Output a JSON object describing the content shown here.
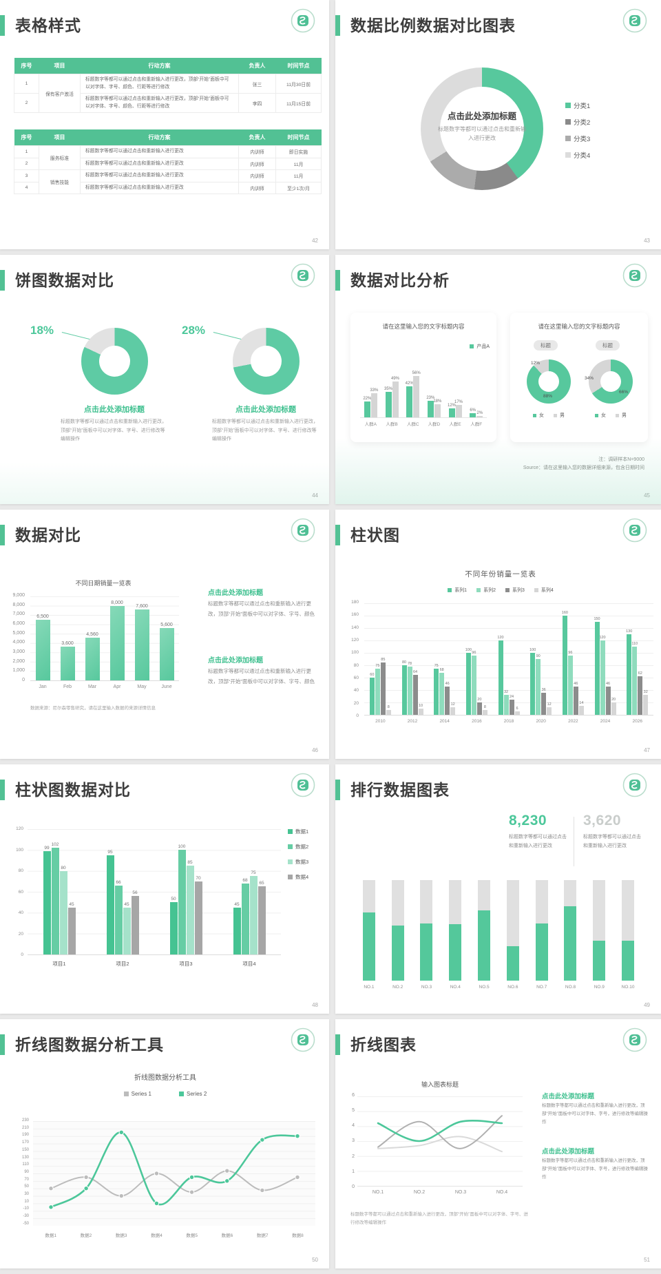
{
  "accent_green": "#52c194",
  "chart_green": "#57c89d",
  "slides": {
    "s42": {
      "title": "表格样式",
      "page": "42",
      "table1": {
        "headers": [
          "序号",
          "项目",
          "行动方案",
          "负责人",
          "时间节点"
        ],
        "rows": [
          {
            "no": "1",
            "project": "保有客户激活",
            "span": 2,
            "plan": "标题数字等都可以通过点击和重新输入进行更改，顶部“开始”面板中可以对字体、字号、颜色、行距等进行修改",
            "owner": "张三",
            "time": "11月30日前"
          },
          {
            "no": "2",
            "plan": "标题数字等都可以通过点击和重新输入进行更改，顶部“开始”面板中可以对字体、字号、颜色、行距等进行修改",
            "owner": "李四",
            "time": "11月15日前"
          }
        ]
      },
      "table2": {
        "headers": [
          "序号",
          "项目",
          "行动方案",
          "负责人",
          "时间节点"
        ],
        "rows": [
          {
            "no": "1",
            "project": "服务标准",
            "span": 2,
            "plan": "标题数字等都可以通过点击和重新输入进行更改",
            "owner": "内训师",
            "time": "即日实施"
          },
          {
            "no": "2",
            "plan": "标题数字等都可以通过点击和重新输入进行更改",
            "owner": "内训师",
            "time": "11月"
          },
          {
            "no": "3",
            "project": "销售技能",
            "span": 2,
            "plan": "标题数字等都可以通过点击和重新输入进行更改",
            "owner": "内训师",
            "time": "11月"
          },
          {
            "no": "4",
            "plan": "标题数字等都可以通过点击和重新输入进行更改",
            "owner": "内训师",
            "time": "至少1次/月"
          }
        ]
      }
    },
    "s43": {
      "title": "数据比例数据对比图表",
      "page": "43",
      "donut_title": "点击此处添加标题",
      "donut_desc": "标题数字等都可以通过点击和重新输入进行更改"
    },
    "s44": {
      "title": "饼图数据对比",
      "page": "44",
      "caption": "点击此处添加标题",
      "desc": "标题数字等都可以通过点击和重新输入进行更改，顶部“开始”面板中可以对字体、字号、进行修改等编辑操作"
    },
    "s45": {
      "title": "数据对比分析",
      "page": "45",
      "card1_title": "请在这里输入您的文字标题内容",
      "card2_title": "请在这里输入您的文字标题内容",
      "badge": "标题",
      "note1": "注：调研样本N=9000",
      "note2": "Source：请在这里输入您的数据详细来源，包含日期时间"
    },
    "s46": {
      "title": "数据对比",
      "page": "46",
      "block_heading": "点击此处添加标题",
      "block_body": "标题数字等都可以通过点击和重新输入进行更改，顶部“开始”面板中可以对字体、字号、颜色"
    },
    "s47": {
      "title": "柱状图",
      "page": "47"
    },
    "s48": {
      "title": "柱状图数据对比",
      "page": "48"
    },
    "s49": {
      "title": "排行数据图表",
      "page": "49",
      "stat1": {
        "value": "8,230",
        "desc": "标题数字等都可以通过点击和重新输入进行更改"
      },
      "stat2": {
        "value": "3,620",
        "desc": "标题数字等都可以通过点击和重新输入进行更改"
      }
    },
    "s50": {
      "title": "折线图数据分析工具",
      "page": "50"
    },
    "s51": {
      "title": "折线图表",
      "page": "51",
      "block_heading": "点击此处添加标题",
      "block_body": "标题数字等都可以通过点击和重新输入进行更改，顶部“开始”面板中可以对字体、字号，进行修改等编辑操作",
      "footer": "标题数字等都可以通过点击和重新输入进行更改，顶部“开始”面板中可以对字体、字号、进行修改等编辑操作"
    }
  },
  "chart_data": [
    {
      "id": "donut-43",
      "type": "pie",
      "title": "点击此处添加标题",
      "subtitle": "标题数字等都可以通过点击和重新输入进行更改",
      "legend_position": "right",
      "slices": [
        {
          "label": "分类1",
          "value": 40,
          "color": "#57c89d"
        },
        {
          "label": "分类2",
          "value": 12,
          "color": "#8a8a8a"
        },
        {
          "label": "分类3",
          "value": 14,
          "color": "#ababab"
        },
        {
          "label": "分类4",
          "value": 34,
          "color": "#dcdcdc"
        }
      ]
    },
    {
      "id": "donut-44a",
      "type": "pie",
      "highlight_label": "18%",
      "slices": [
        {
          "value": 82,
          "color": "#5ecba4"
        },
        {
          "value": 18,
          "color": "#e2e2e2"
        }
      ]
    },
    {
      "id": "donut-44b",
      "type": "pie",
      "highlight_label": "28%",
      "slices": [
        {
          "value": 72,
          "color": "#5ecba4"
        },
        {
          "value": 28,
          "color": "#e2e2e2"
        }
      ]
    },
    {
      "id": "bar-45",
      "type": "bar",
      "title": "请在这里输入您的文字标题内容",
      "unit": "%",
      "ylim": [
        0,
        60
      ],
      "categories": [
        "人群A",
        "人群B",
        "人群C",
        "人群D",
        "人群E",
        "人群F"
      ],
      "series": [
        {
          "name": "产品A",
          "color": "#57c89d",
          "values": [
            22,
            35,
            42,
            23,
            12,
            6
          ]
        },
        {
          "name": "",
          "color": "#d5d5d5",
          "values": [
            33,
            49,
            56,
            18,
            17,
            2
          ]
        }
      ]
    },
    {
      "id": "donut-45a",
      "type": "pie",
      "badge": "标题",
      "slice_labels": [
        "12%",
        "88%"
      ],
      "slices": [
        {
          "label": "女",
          "value": 88,
          "color": "#57c89d"
        },
        {
          "label": "男",
          "value": 12,
          "color": "#d6d6d6"
        }
      ]
    },
    {
      "id": "donut-45b",
      "type": "pie",
      "badge": "标题",
      "slice_labels": [
        "34%",
        "66%"
      ],
      "slices": [
        {
          "label": "女",
          "value": 66,
          "color": "#57c89d"
        },
        {
          "label": "男",
          "value": 34,
          "color": "#d6d6d6"
        }
      ]
    },
    {
      "id": "bar-46",
      "type": "bar",
      "title": "不同日期销量一览表",
      "ylim": [
        0,
        9000
      ],
      "ytick_step": 1000,
      "categories": [
        "Jan",
        "Feb",
        "Mar",
        "Apr",
        "May",
        "June"
      ],
      "values": [
        6500,
        3600,
        4560,
        8000,
        7600,
        5600
      ],
      "labels": [
        "6,500",
        "3,600",
        "4,560",
        "8,000",
        "7,600",
        "5,600"
      ],
      "color": "#57c89d",
      "source": "数据来源：尼尔森零售研究，请在这里输入数据的来源详情信息"
    },
    {
      "id": "bar-47",
      "type": "bar",
      "title": "不同年份销量一览表",
      "ylim": [
        0,
        180
      ],
      "ytick_step": 20,
      "categories": [
        "2010",
        "2012",
        "2014",
        "2016",
        "2018",
        "2020",
        "2022",
        "2024",
        "2026"
      ],
      "series": [
        {
          "name": "系列1",
          "color": "#57c89d",
          "values": [
            60,
            80,
            75,
            100,
            120,
            100,
            160,
            150,
            130
          ]
        },
        {
          "name": "系列2",
          "color": "#8fdcbd",
          "values": [
            75,
            78,
            68,
            96,
            32,
            90,
            96,
            120,
            110
          ]
        },
        {
          "name": "系列3",
          "color": "#8c8c8c",
          "values": [
            85,
            64,
            46,
            20,
            24,
            36,
            46,
            46,
            62
          ]
        },
        {
          "name": "系列4",
          "color": "#d6d6d6",
          "values": [
            8,
            10,
            12,
            8,
            6,
            12,
            14,
            20,
            32
          ]
        }
      ]
    },
    {
      "id": "bar-48",
      "type": "bar",
      "ylim": [
        0,
        120
      ],
      "ytick_step": 20,
      "categories": [
        "项目1",
        "项目2",
        "项目3",
        "项目4"
      ],
      "series": [
        {
          "name": "数据1",
          "color": "#45c392",
          "values": [
            99,
            95,
            50,
            45
          ]
        },
        {
          "name": "数据2",
          "color": "#66cda4",
          "values": [
            102,
            66,
            100,
            68
          ]
        },
        {
          "name": "数据3",
          "color": "#a5e2ca",
          "values": [
            80,
            45,
            85,
            75
          ]
        },
        {
          "name": "数据4",
          "color": "#a6a6a6",
          "values": [
            45,
            56,
            70,
            65
          ]
        }
      ]
    },
    {
      "id": "rank-49",
      "type": "bar",
      "subtype": "stacked-percent",
      "categories": [
        "NO.1",
        "NO.2",
        "NO.3",
        "NO.4",
        "NO.5",
        "NO.6",
        "NO.7",
        "NO.8",
        "NO.9",
        "NO.10"
      ],
      "green_percent": [
        68,
        55,
        57,
        56,
        70,
        34,
        57,
        74,
        40,
        40
      ],
      "colors": {
        "filled": "#54c89b",
        "rest": "#e0e0e0"
      }
    },
    {
      "id": "line-50",
      "type": "line",
      "title": "折线图数据分析工具",
      "ylim": [
        -50,
        230
      ],
      "ytick_step": 20,
      "legend_position": "top",
      "categories": [
        "数据1",
        "数据2",
        "数据3",
        "数据4",
        "数据5",
        "数据6",
        "数据7",
        "数据8"
      ],
      "series": [
        {
          "name": "Series 1",
          "color": "#bcbcbc",
          "values": [
            50,
            80,
            30,
            90,
            40,
            97,
            45,
            80
          ]
        },
        {
          "name": "Series 2",
          "color": "#4cc79a",
          "values": [
            0,
            50,
            200,
            10,
            80,
            70,
            180,
            190
          ]
        }
      ]
    },
    {
      "id": "line-51",
      "type": "line",
      "title": "输入图表标题",
      "ylim": [
        0,
        6
      ],
      "ytick_step": 1,
      "categories": [
        "NO.1",
        "NO.2",
        "NO.3",
        "NO.4"
      ],
      "series": [
        {
          "name": "",
          "color": "#dadada",
          "values": [
            2.5,
            2.7,
            3.3,
            2.3
          ]
        },
        {
          "name": "",
          "color": "#b0b0b0",
          "values": [
            2.6,
            4.3,
            2.5,
            4.7
          ]
        },
        {
          "name": "",
          "color": "#4cc79a",
          "values": [
            4.2,
            3.0,
            4.3,
            4.2
          ]
        }
      ]
    }
  ]
}
